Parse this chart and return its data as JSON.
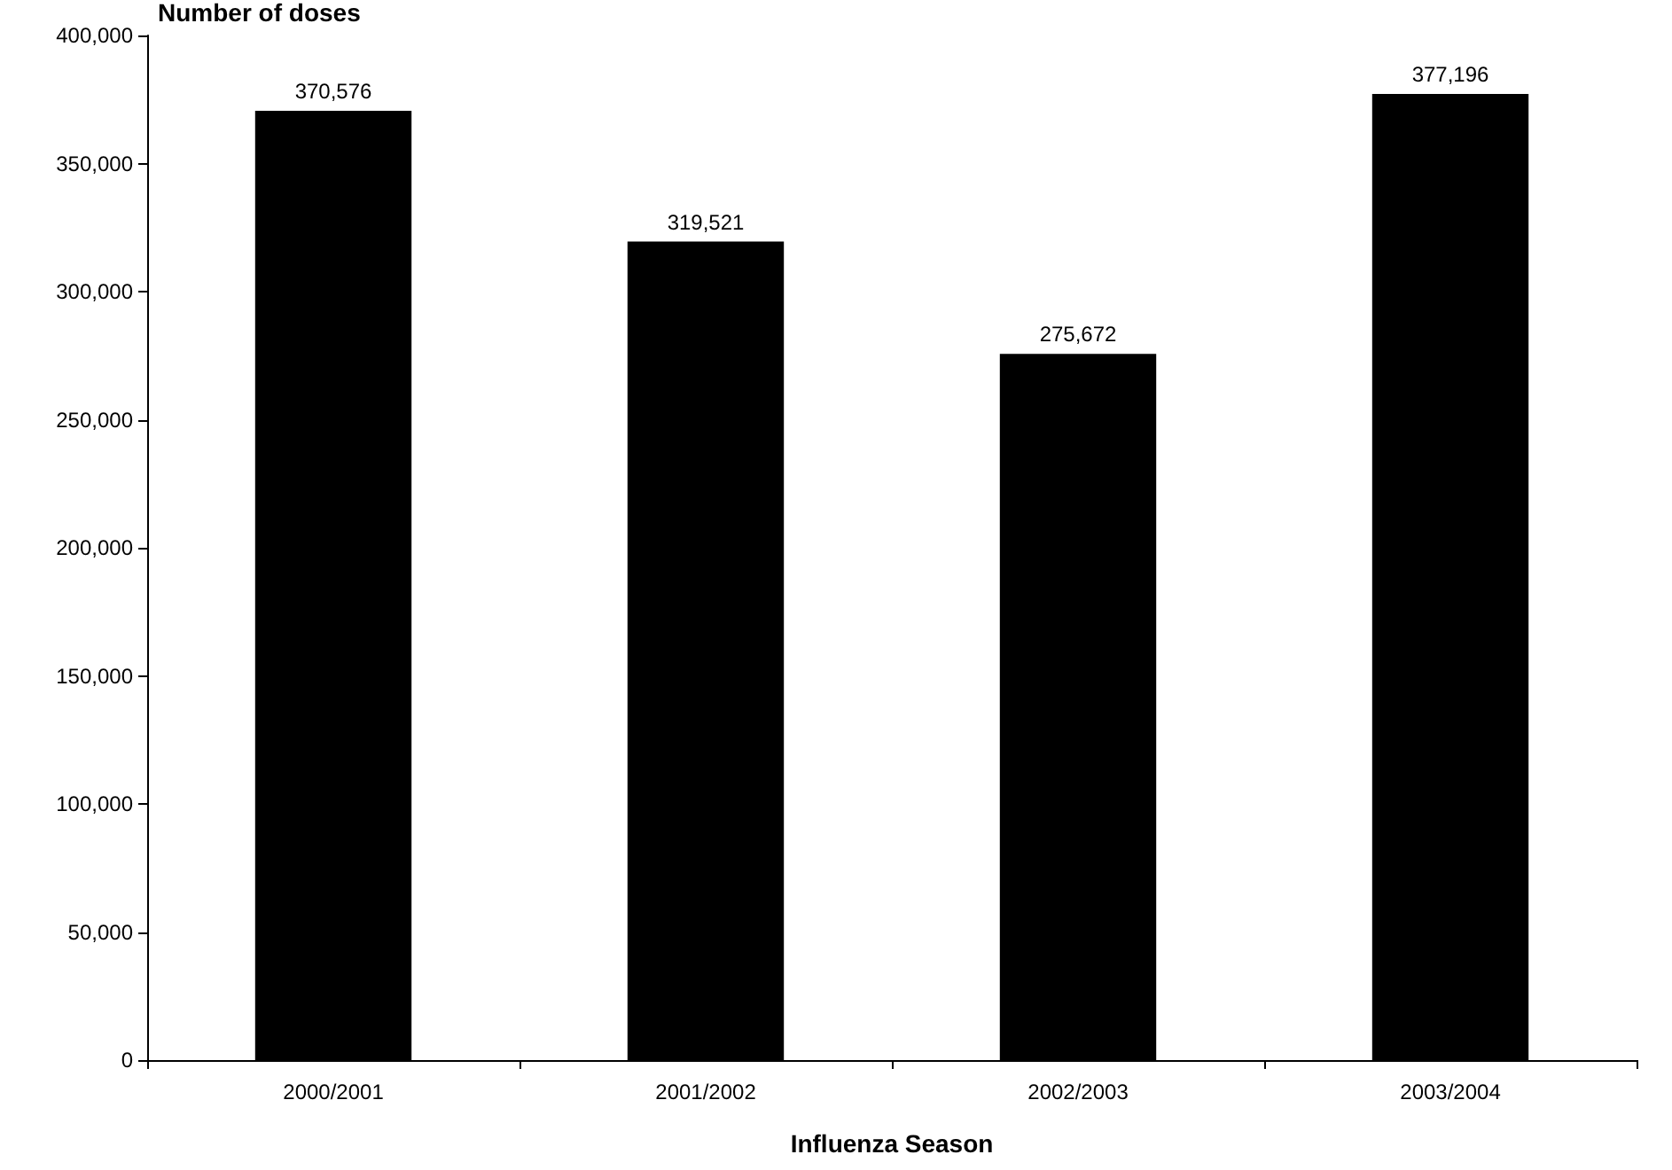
{
  "chart_data": {
    "type": "bar",
    "xlabel": "Influenza Season",
    "ylabel": "Number of doses",
    "categories": [
      "2000/2001",
      "2001/2002",
      "2002/2003",
      "2003/2004"
    ],
    "values": [
      370576,
      319521,
      275672,
      377196
    ],
    "color": "#000000",
    "value_labels": [
      "370,576",
      "319,521",
      "275,672",
      "377,196"
    ],
    "ylim": [
      0,
      400000
    ],
    "yticks": [
      {
        "value": 0,
        "label": "0"
      },
      {
        "value": 50000,
        "label": "50,000"
      },
      {
        "value": 100000,
        "label": "100,000"
      },
      {
        "value": 150000,
        "label": "150,000"
      },
      {
        "value": 200000,
        "label": "200,000"
      },
      {
        "value": 250000,
        "label": "250,000"
      },
      {
        "value": 300000,
        "label": "300,000"
      },
      {
        "value": 350000,
        "label": "350,000"
      },
      {
        "value": 400000,
        "label": "400,000"
      }
    ],
    "grid": false
  }
}
